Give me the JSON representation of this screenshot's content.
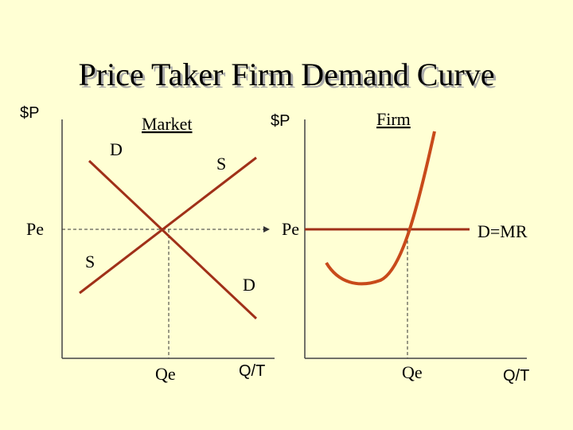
{
  "title": "Price Taker Firm Demand Curve",
  "market": {
    "heading": "Market",
    "y_label": "$P",
    "x_label": "Q/T",
    "price_label": "Pe",
    "quantity_label": "Qe",
    "demand_top_label": "D",
    "demand_bottom_label": "D",
    "supply_top_label": "S",
    "supply_bottom_label": "S"
  },
  "firm": {
    "heading": "Firm",
    "y_label": "$P",
    "x_label": "Q/T",
    "price_label": "Pe",
    "quantity_label": "Qe",
    "demand_label": "D=MR"
  }
}
